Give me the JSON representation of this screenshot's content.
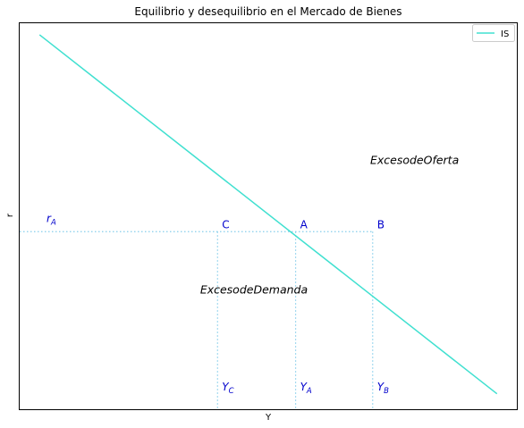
{
  "chart_data": {
    "type": "line",
    "title": "Equilibrio y desequilibrio en el Mercado de Bienes",
    "xlabel": "Y",
    "ylabel": "r",
    "xlim": [
      0,
      100
    ],
    "ylim": [
      0,
      100
    ],
    "grid": false,
    "legend_position": "top-right",
    "axis_ticks": false,
    "colors": {
      "is_line": "#40e0d0",
      "guide": "#87ceeb",
      "label": "#0000cc"
    },
    "series": [
      {
        "name": "IS",
        "x": [
          4,
          96
        ],
        "y": [
          97,
          4
        ]
      }
    ],
    "equilibrium_r": 46,
    "points": [
      {
        "name": "C",
        "x": 39.8,
        "y": 46
      },
      {
        "name": "A",
        "x": 55.5,
        "y": 46
      },
      {
        "name": "B",
        "x": 71,
        "y": 46
      }
    ],
    "annotations": {
      "r_label": {
        "base": "r",
        "sub": "A"
      },
      "x_markers": [
        {
          "base": "Y",
          "sub": "C",
          "x": 39.8
        },
        {
          "base": "Y",
          "sub": "A",
          "x": 55.5
        },
        {
          "base": "Y",
          "sub": "B",
          "x": 71
        }
      ],
      "regions": [
        {
          "text": "ExcesodeOferta",
          "x": 70.5,
          "y": 63.5
        },
        {
          "text": "ExcesodeDemanda",
          "x": 36.3,
          "y": 30
        }
      ]
    }
  }
}
